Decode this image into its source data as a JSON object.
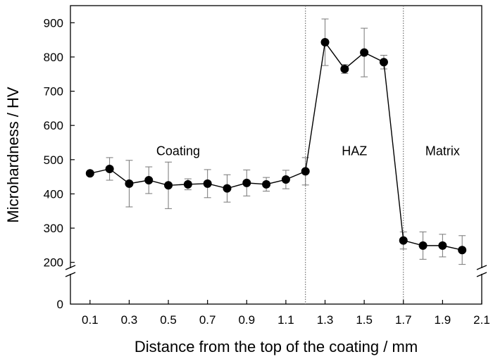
{
  "chart_data": {
    "type": "line",
    "title": "",
    "xlabel": "Distance from the top of the coating / mm",
    "ylabel": "Microhardness / HV",
    "xlim": [
      0.0,
      2.1
    ],
    "ylim_upper": [
      185,
      950
    ],
    "ylim_lower": [
      0,
      110
    ],
    "axis_break": true,
    "x_ticks": [
      0.1,
      0.3,
      0.5,
      0.7,
      0.9,
      1.1,
      1.3,
      1.5,
      1.7,
      1.9,
      2.1
    ],
    "x_tick_labels": [
      "0.1",
      "0.3",
      "0.5",
      "0.7",
      "0.9",
      "1.1",
      "1.3",
      "1.5",
      "1.7",
      "1.9",
      "2.1"
    ],
    "y_ticks_upper": [
      200,
      300,
      400,
      500,
      600,
      700,
      800,
      900
    ],
    "y_tick_labels_upper": [
      "200",
      "300",
      "400",
      "500",
      "600",
      "700",
      "800",
      "900"
    ],
    "y_ticks_lower": [
      0
    ],
    "y_tick_labels_lower": [
      "0"
    ],
    "vlines": [
      1.2,
      1.7
    ],
    "regions": [
      {
        "label": "Coating",
        "x": 0.55,
        "y": 513
      },
      {
        "label": "HAZ",
        "x": 1.45,
        "y": 513
      },
      {
        "label": "Matrix",
        "x": 1.9,
        "y": 513
      }
    ],
    "series": [
      {
        "x": [
          0.1,
          0.2,
          0.3,
          0.4,
          0.5,
          0.6,
          0.7,
          0.8,
          0.9,
          1.0,
          1.1,
          1.2,
          1.3,
          1.4,
          1.5,
          1.6,
          1.7,
          1.8,
          1.9,
          2.0
        ],
        "y": [
          460,
          473,
          430,
          440,
          425,
          428,
          430,
          416,
          432,
          428,
          442,
          466,
          843,
          765,
          813,
          785,
          264,
          249,
          249,
          236
        ],
        "err": [
          6,
          33,
          68,
          39,
          68,
          16,
          41,
          40,
          38,
          20,
          27,
          40,
          68,
          13,
          71,
          20,
          25,
          40,
          33,
          42
        ]
      }
    ],
    "grid": false,
    "colors": {
      "line": "#000000",
      "marker": "#000000",
      "errorbar": "#777777",
      "vline": "#555555"
    }
  }
}
